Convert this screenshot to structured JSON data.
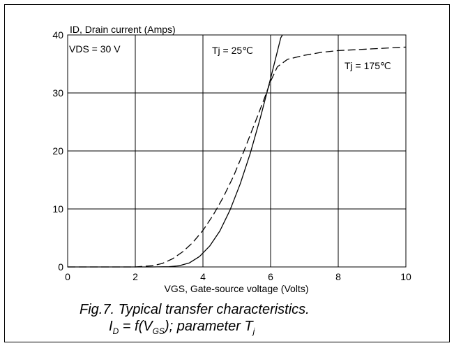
{
  "chart_data": {
    "type": "line",
    "ylabel": "ID, Drain current (Amps)",
    "xlabel": "VGS, Gate-source voltage (Volts)",
    "xlim": [
      0,
      10
    ],
    "ylim": [
      0,
      40
    ],
    "x_ticks": [
      "0",
      "2",
      "4",
      "6",
      "8",
      "10"
    ],
    "y_ticks": [
      "0",
      "10",
      "20",
      "30",
      "40"
    ],
    "grid": true,
    "annotations": [
      "VDS = 30 V",
      "Tj = 25℃",
      "Tj = 175℃"
    ],
    "series": [
      {
        "name": "Tj = 25℃",
        "style": "solid",
        "x": [
          0,
          2.5,
          3.0,
          3.3,
          3.6,
          3.9,
          4.2,
          4.5,
          4.8,
          5.1,
          5.4,
          5.7,
          6.0,
          6.3,
          6.35
        ],
        "y": [
          0,
          0,
          0.05,
          0.2,
          0.7,
          1.8,
          3.6,
          6.2,
          9.8,
          14.3,
          19.6,
          25.8,
          32.5,
          39.5,
          40
        ]
      },
      {
        "name": "Tj = 175℃",
        "style": "dashed",
        "x": [
          0,
          2.0,
          2.5,
          2.8,
          3.1,
          3.4,
          3.7,
          4.0,
          4.3,
          4.6,
          4.9,
          5.2,
          5.5,
          5.8,
          6.0,
          6.2,
          6.5,
          7.0,
          7.5,
          8.0,
          9.0,
          10.0
        ],
        "y": [
          0,
          0,
          0.2,
          0.6,
          1.4,
          2.6,
          4.2,
          6.3,
          8.9,
          12.0,
          15.6,
          19.8,
          24.3,
          28.8,
          32.0,
          34.5,
          35.8,
          36.5,
          37.0,
          37.3,
          37.6,
          37.9
        ]
      }
    ]
  },
  "caption": {
    "line1": "Fig.7.  Typical transfer characteristics.",
    "line2_prefix": "I",
    "line2_sub1": "D",
    "line2_mid": " = f(V",
    "line2_sub2": "GS",
    "line2_mid2": "); parameter T",
    "line2_sub3": "j"
  }
}
